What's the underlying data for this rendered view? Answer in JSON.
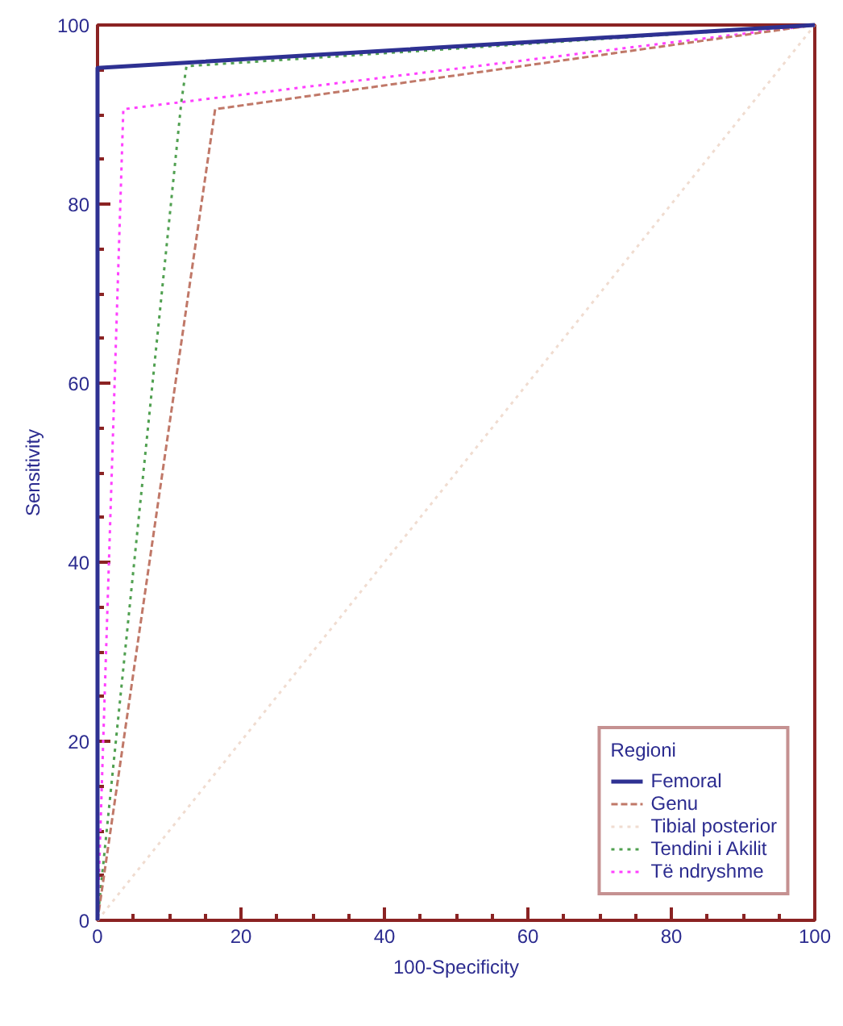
{
  "chart_data": {
    "type": "line",
    "xlabel": "100-Specificity",
    "ylabel": "Sensitivity",
    "legend_title": "Regioni",
    "legend": "bottom right",
    "grid": false,
    "marker": "none",
    "xlim": [
      0,
      100
    ],
    "ylim": [
      0,
      100
    ],
    "xticks": [
      0,
      20,
      40,
      60,
      80,
      100
    ],
    "yticks": [
      0,
      20,
      40,
      60,
      80,
      100
    ],
    "series": [
      {
        "name": "Femoral",
        "color": "#2e3192",
        "line_style": "solid",
        "x": [
          0,
          0,
          100
        ],
        "values": [
          0,
          95.2,
          100
        ]
      },
      {
        "name": "Genu",
        "color": "#c07868",
        "line_style": "dashed",
        "x": [
          0,
          16.4,
          100
        ],
        "values": [
          0,
          90.6,
          100
        ]
      },
      {
        "name": "Tibial posterior",
        "color": "#f0dcd0",
        "line_style": "dotted",
        "x": [
          0,
          100
        ],
        "values": [
          0,
          100
        ]
      },
      {
        "name": "Tendini i Akilit",
        "color": "#50a050",
        "line_style": "dotted",
        "x": [
          0,
          11.7,
          12.4,
          100
        ],
        "values": [
          0,
          91.5,
          95.4,
          100
        ]
      },
      {
        "name": "Të ndryshme",
        "color": "#ff40ff",
        "line_style": "dotted",
        "x": [
          0,
          3.6,
          100
        ],
        "values": [
          0,
          90.6,
          100
        ]
      }
    ]
  }
}
